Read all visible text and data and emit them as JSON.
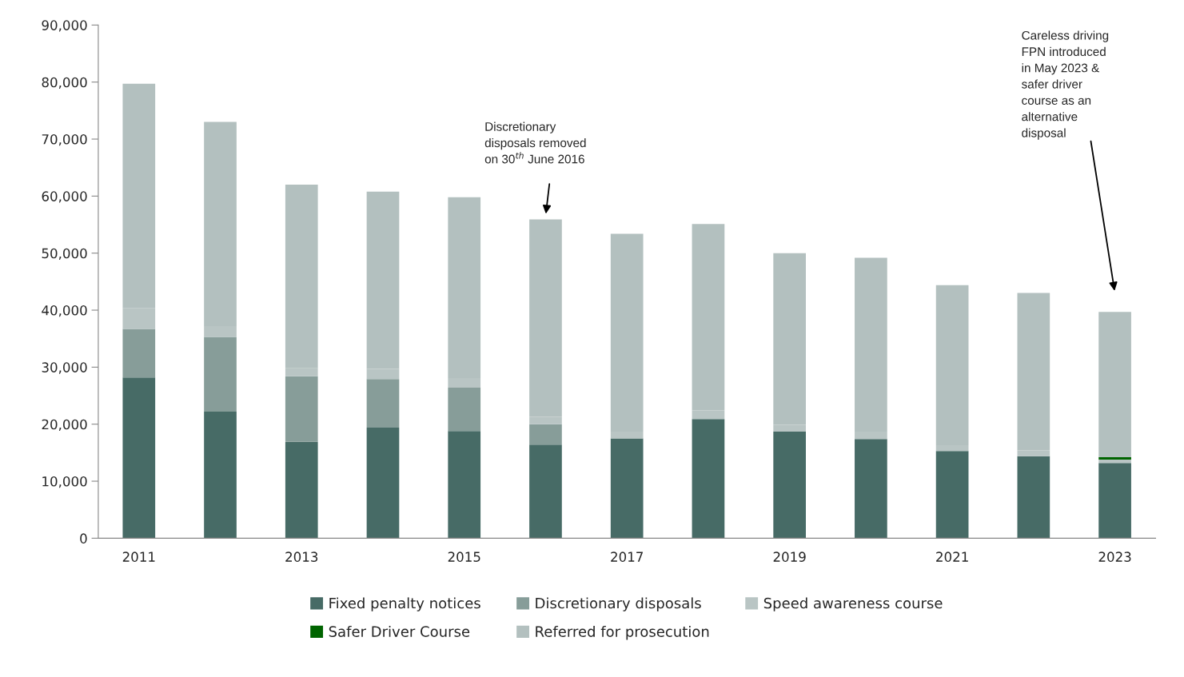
{
  "chart_data": {
    "type": "bar",
    "stacked": true,
    "categories": [
      "2011",
      null,
      "2013",
      null,
      "2015",
      null,
      "2017",
      null,
      "2019",
      null,
      "2021",
      null,
      "2023"
    ],
    "series": [
      {
        "name": "Fixed penalty notices",
        "color": "#476b66",
        "values": [
          28200,
          22200,
          16900,
          19400,
          18800,
          16400,
          17500,
          20900,
          18700,
          17400,
          15300,
          14400,
          13200
        ]
      },
      {
        "name": "Discretionary disposals",
        "color": "#879d99",
        "values": [
          8500,
          13100,
          11500,
          8500,
          7600,
          3600,
          0,
          0,
          0,
          0,
          0,
          0,
          0
        ]
      },
      {
        "name": "Speed awareness course",
        "color": "#b9c5c4",
        "values": [
          3700,
          1900,
          1400,
          1800,
          1700,
          1300,
          1200,
          1500,
          1200,
          1300,
          1000,
          1000,
          600
        ]
      },
      {
        "name": "Safer Driver Course",
        "color": "#006400",
        "values": [
          0,
          0,
          0,
          0,
          0,
          0,
          0,
          0,
          0,
          0,
          0,
          0,
          400
        ]
      },
      {
        "name": "Referred for prosecution",
        "color": "#b3c0bf",
        "values": [
          39300,
          35800,
          32200,
          31100,
          31700,
          34600,
          34700,
          32700,
          30100,
          30500,
          28100,
          27600,
          25500
        ]
      }
    ],
    "ylim": [
      0,
      90000
    ],
    "yticks": [
      0,
      {
        "value": 10000,
        "label": "10,000"
      },
      {
        "value": 20000,
        "label": "20,000"
      },
      {
        "value": 30000,
        "label": "30,000"
      },
      {
        "value": 40000,
        "label": "40,000"
      },
      {
        "value": 50000,
        "label": "50,000"
      },
      {
        "value": 60000,
        "label": "60,000"
      },
      {
        "value": 70000,
        "label": "70,000"
      },
      {
        "value": 80000,
        "label": "80,000"
      },
      {
        "value": 90000,
        "label": "90,000"
      }
    ],
    "annotations": [
      "Discretionary\ndisposals removed\non 30$^{th}$ June 2016",
      "Careless driving\nFPN introduced\nin May 2023 &\nsafer driver\ncourse as an\nalternative\ndisposal"
    ],
    "grid": false,
    "legend": "bottom"
  }
}
